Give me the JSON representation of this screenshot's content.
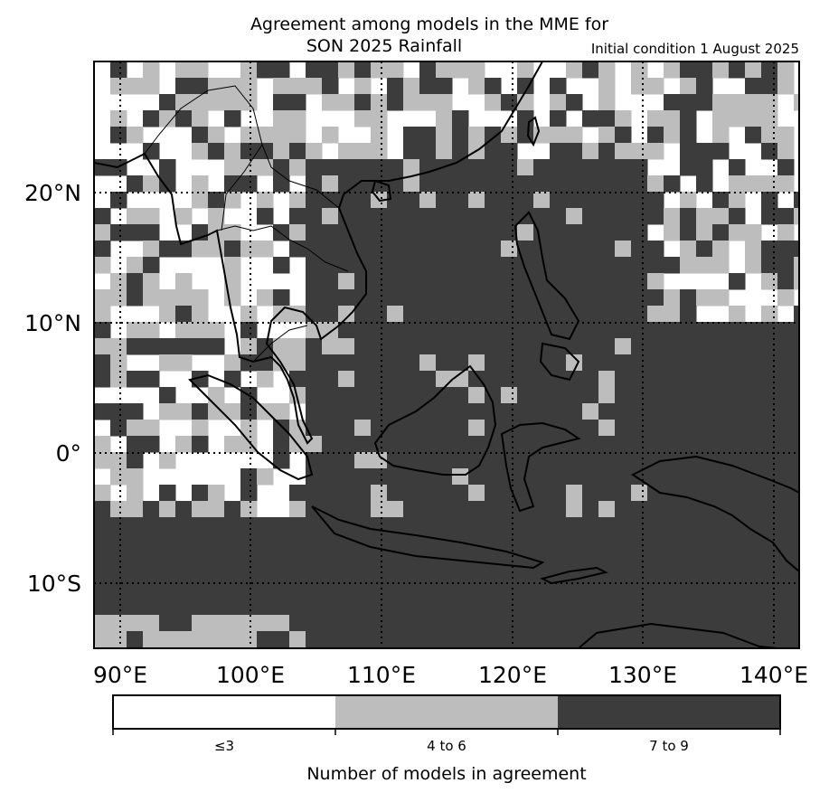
{
  "title_line1": "Agreement among models in the MME for",
  "title_line2": "SON 2025  Rainfall",
  "initial_condition": "Initial condition 1 August 2025",
  "lon_labels": [
    "90°E",
    "100°E",
    "110°E",
    "120°E",
    "130°E",
    "140°E"
  ],
  "lat_labels": [
    "20°N",
    "10°N",
    "0°",
    "10°S"
  ],
  "colorbar": {
    "title": "Number of models in agreement",
    "classes": [
      {
        "label": "≤3",
        "color": "#ffffff"
      },
      {
        "label": "4 to 6",
        "color": "#bdbdbd"
      },
      {
        "label": "7 to 9",
        "color": "#3c3c3c"
      }
    ]
  },
  "map_extent": {
    "lon": [
      88,
      142
    ],
    "lat": [
      -15,
      30
    ]
  }
}
